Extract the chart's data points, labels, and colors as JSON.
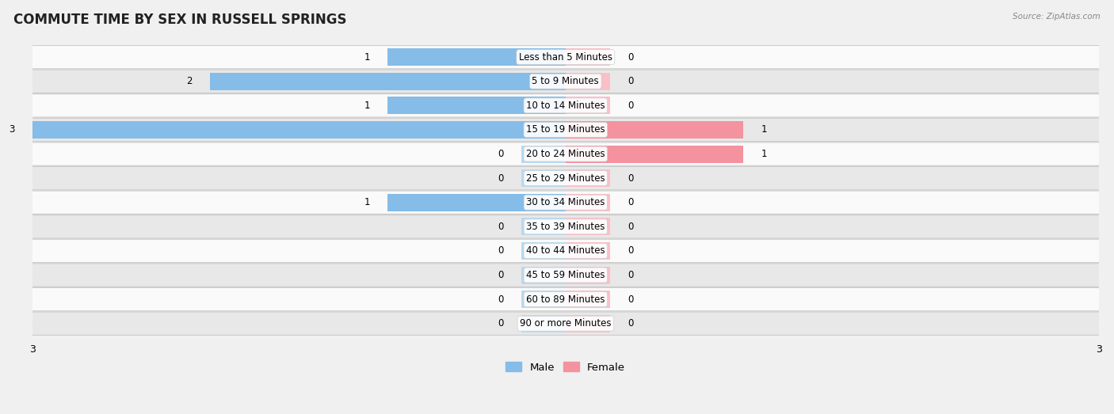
{
  "title": "COMMUTE TIME BY SEX IN RUSSELL SPRINGS",
  "source": "Source: ZipAtlas.com",
  "categories": [
    "Less than 5 Minutes",
    "5 to 9 Minutes",
    "10 to 14 Minutes",
    "15 to 19 Minutes",
    "20 to 24 Minutes",
    "25 to 29 Minutes",
    "30 to 34 Minutes",
    "35 to 39 Minutes",
    "40 to 44 Minutes",
    "45 to 59 Minutes",
    "60 to 89 Minutes",
    "90 or more Minutes"
  ],
  "male_values": [
    1,
    2,
    1,
    3,
    0,
    0,
    1,
    0,
    0,
    0,
    0,
    0
  ],
  "female_values": [
    0,
    0,
    0,
    1,
    1,
    0,
    0,
    0,
    0,
    0,
    0,
    0
  ],
  "male_color": "#85BCE8",
  "female_color": "#F4929F",
  "male_color_zero": "#B8D9F2",
  "female_color_zero": "#F9C0C8",
  "background_color": "#F0F0F0",
  "row_bg_odd": "#FAFAFA",
  "row_bg_even": "#E8E8E8",
  "xlim": 3.0,
  "min_bar": 0.25,
  "bar_height": 0.72,
  "title_fontsize": 12,
  "label_fontsize": 8.5,
  "tick_fontsize": 9,
  "legend_fontsize": 9.5
}
